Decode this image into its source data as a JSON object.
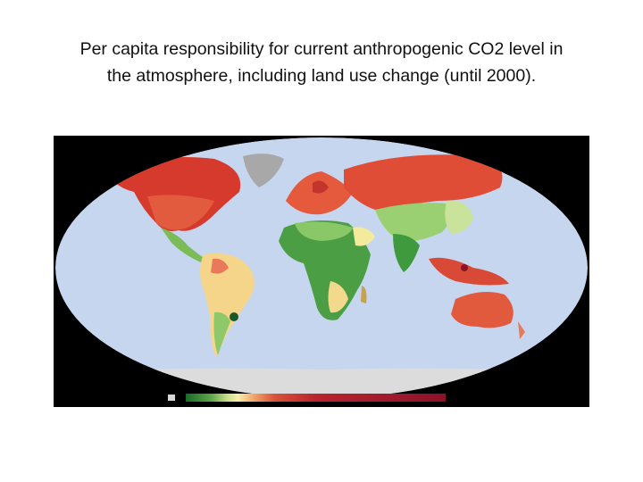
{
  "slide": {
    "title": {
      "lines": [
        "Per capita responsibility for current anthropogenic CO2 level in",
        "the atmosphere, including land use change (until 2000)."
      ]
    }
  }
}
